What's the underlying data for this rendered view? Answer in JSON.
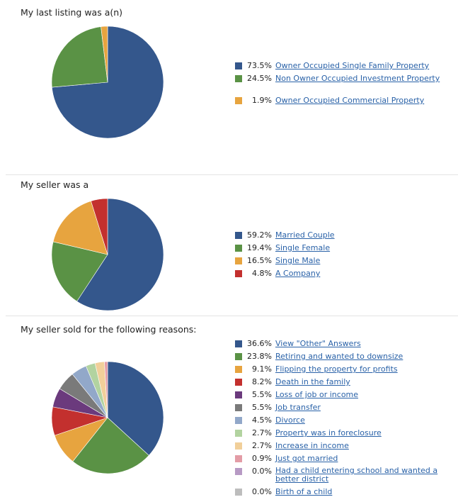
{
  "chart_data": [
    {
      "type": "pie",
      "title": "My last listing was a(n)",
      "series": [
        {
          "label": "Owner Occupied Single Family Property",
          "percent": 73.5,
          "percent_label": "73.5%",
          "color": "#34578c"
        },
        {
          "label": "Non Owner Occupied Investment Property",
          "percent": 24.5,
          "percent_label": "24.5%",
          "color": "#5a9245"
        },
        {
          "label": "Owner Occupied Commercial Property",
          "percent": 1.9,
          "percent_label": "1.9%",
          "color": "#e7a43f"
        }
      ]
    },
    {
      "type": "pie",
      "title": "My seller was a",
      "series": [
        {
          "label": "Married Couple",
          "percent": 59.2,
          "percent_label": "59.2%",
          "color": "#34578c"
        },
        {
          "label": "Single Female",
          "percent": 19.4,
          "percent_label": "19.4%",
          "color": "#5a9245"
        },
        {
          "label": "Single Male",
          "percent": 16.5,
          "percent_label": "16.5%",
          "color": "#e7a43f"
        },
        {
          "label": "A Company",
          "percent": 4.8,
          "percent_label": "4.8%",
          "color": "#c3302e"
        }
      ]
    },
    {
      "type": "pie",
      "title": "My seller sold for the following reasons:",
      "series": [
        {
          "label": "View \"Other\" Answers",
          "percent": 36.6,
          "percent_label": "36.6%",
          "color": "#34578c"
        },
        {
          "label": "Retiring and wanted to downsize",
          "percent": 23.8,
          "percent_label": "23.8%",
          "color": "#5a9245"
        },
        {
          "label": "Flipping the property for profits",
          "percent": 9.1,
          "percent_label": "9.1%",
          "color": "#e7a43f"
        },
        {
          "label": "Death in the family",
          "percent": 8.2,
          "percent_label": "8.2%",
          "color": "#c3302e"
        },
        {
          "label": "Loss of job or income",
          "percent": 5.5,
          "percent_label": "5.5%",
          "color": "#6b3a7d"
        },
        {
          "label": "Job transfer",
          "percent": 5.5,
          "percent_label": "5.5%",
          "color": "#7a7a7a"
        },
        {
          "label": "Divorce",
          "percent": 4.5,
          "percent_label": "4.5%",
          "color": "#92a8c9"
        },
        {
          "label": "Property was in foreclosure",
          "percent": 2.7,
          "percent_label": "2.7%",
          "color": "#b2d3a0"
        },
        {
          "label": "Increase in income",
          "percent": 2.7,
          "percent_label": "2.7%",
          "color": "#f1cf9a"
        },
        {
          "label": "Just got married",
          "percent": 0.9,
          "percent_label": "0.9%",
          "color": "#e39ca6"
        },
        {
          "label": "Had a child entering school and wanted a better district",
          "percent": 0.0,
          "percent_label": "0.0%",
          "color": "#b79ac4"
        },
        {
          "label": "Birth of a child",
          "percent": 0.0,
          "percent_label": "0.0%",
          "color": "#bdbdbd"
        }
      ]
    }
  ]
}
